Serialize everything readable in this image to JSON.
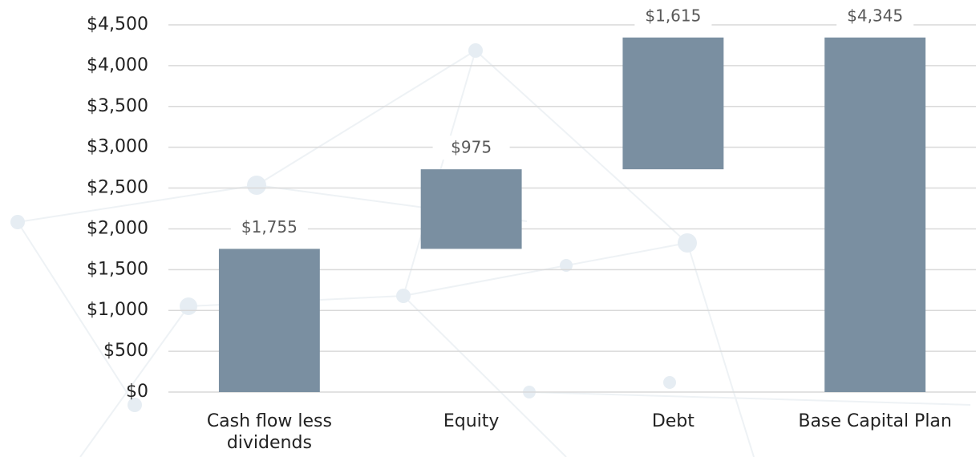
{
  "chart_data": {
    "type": "waterfall",
    "categories": [
      "Cash flow less dividends",
      "Equity",
      "Debt",
      "Base Capital Plan"
    ],
    "values": [
      1755,
      975,
      1615,
      4345
    ],
    "value_labels": [
      "$1,755",
      "$975",
      "$1,615",
      "$4,345"
    ],
    "measure": [
      "relative",
      "relative",
      "relative",
      "total"
    ],
    "color": "#7a8fa1",
    "ylim": [
      0,
      4500
    ],
    "yticks": [
      {
        "value": 0,
        "label": "$0"
      },
      {
        "value": 500,
        "label": "$500"
      },
      {
        "value": 1000,
        "label": "$1,000"
      },
      {
        "value": 1500,
        "label": "$1,500"
      },
      {
        "value": 2000,
        "label": "$2,000"
      },
      {
        "value": 2500,
        "label": "$2,500"
      },
      {
        "value": 3000,
        "label": "$3,000"
      },
      {
        "value": 3500,
        "label": "$3,500"
      },
      {
        "value": 4000,
        "label": "$4,000"
      },
      {
        "value": 4500,
        "label": "$4,500"
      }
    ],
    "grid": true
  }
}
